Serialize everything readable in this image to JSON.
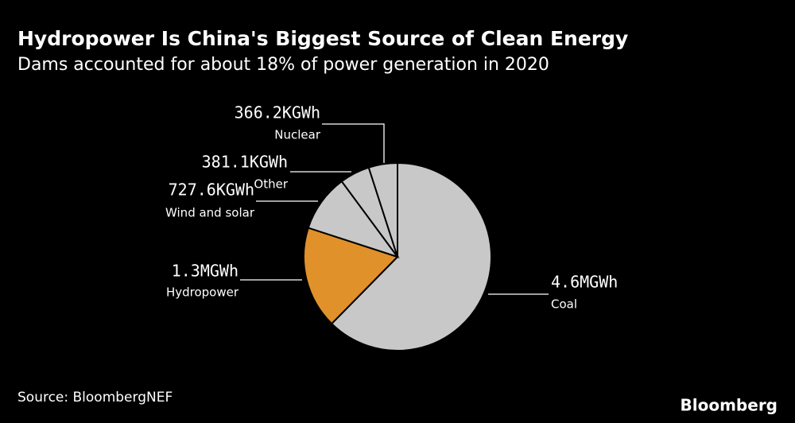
{
  "chart_data": {
    "type": "pie",
    "title": "Hydropower Is China's Biggest Source of Clean Energy",
    "subtitle": "Dams accounted for about 18% of power generation in 2020",
    "categories": [
      "Coal",
      "Hydropower",
      "Wind and solar",
      "Other",
      "Nuclear"
    ],
    "values": [
      4600,
      1300,
      727.6,
      381.1,
      366.2
    ],
    "value_labels": [
      "4.6MGWh",
      "1.3MGWh",
      "727.6KGWh",
      "381.1KGWh",
      "366.2KGWh"
    ],
    "colors": [
      "#c8c8c8",
      "#e0912a",
      "#c8c8c8",
      "#c8c8c8",
      "#c8c8c8"
    ],
    "source": "Source: BloombergNEF",
    "brand": "Bloomberg"
  }
}
